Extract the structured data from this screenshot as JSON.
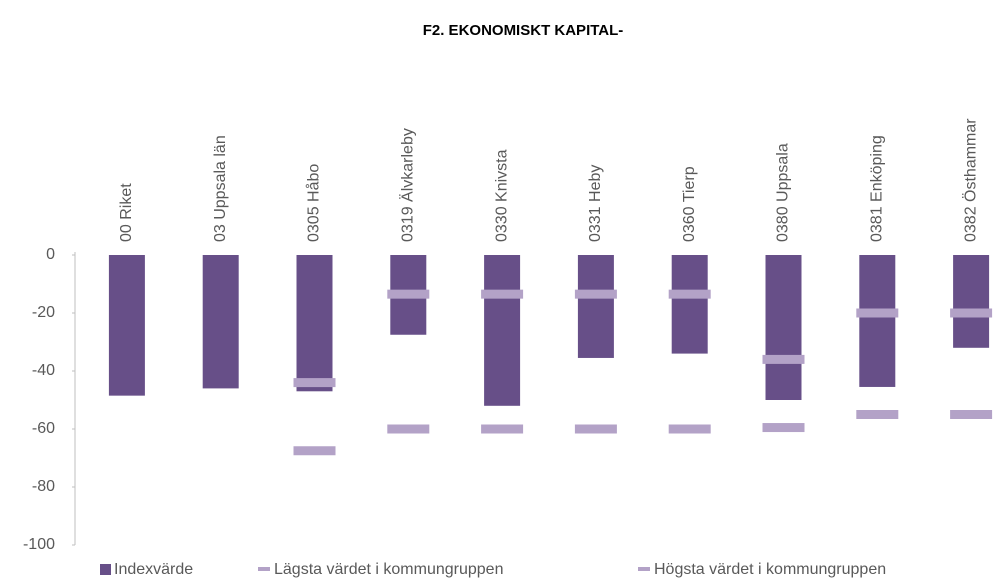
{
  "chart_data": {
    "type": "bar",
    "title": "F2. EKONOMISKT KAPITAL-",
    "categories": [
      "00 Riket",
      "03 Uppsala län",
      "0305 Håbo",
      "0319 Älvkarleby",
      "0330 Knivsta",
      "0331 Heby",
      "0360 Tierp",
      "0380 Uppsala",
      "0381 Enköping",
      "0382 Östhammar"
    ],
    "series": [
      {
        "name": "Indexvärde",
        "color": "#674f88",
        "values": [
          -48.5,
          -46,
          -47,
          -27.5,
          -52,
          -35.5,
          -34,
          -50,
          -45.5,
          -32
        ]
      },
      {
        "name": "Lägsta värdet i kommungruppen",
        "color": "#b3a2c7",
        "values": [
          null,
          null,
          -67.5,
          -60,
          -60,
          -60,
          -60,
          -59.5,
          -55,
          -55
        ]
      },
      {
        "name": "Högsta värdet i kommungruppen",
        "color": "#b3a2c7",
        "values": [
          null,
          null,
          -44,
          -13.5,
          -13.5,
          -13.5,
          -13.5,
          -36,
          -20,
          -20
        ]
      }
    ],
    "ylim": [
      -100,
      0
    ],
    "yticks": [
      0,
      -20,
      -40,
      -60,
      -80,
      -100
    ],
    "legend": "bottom"
  }
}
